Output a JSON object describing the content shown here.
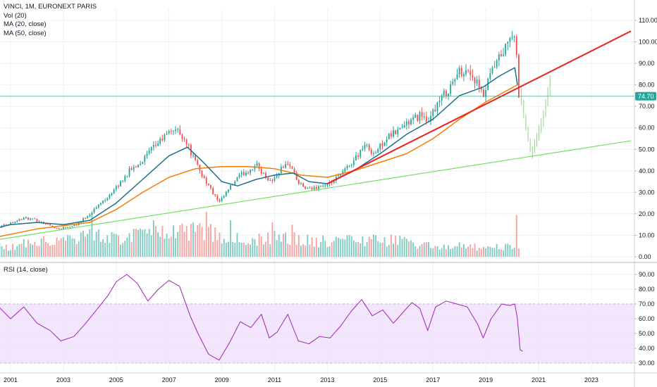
{
  "legend": {
    "symbol": "VINCI, 1M, EURONEXT PARIS",
    "vol": "Vol (20)",
    "ma20": "MA (20, close)",
    "ma50": "MA (50, close)",
    "rsi": "RSI (14, close)"
  },
  "colors": {
    "up": "#26a69a",
    "down": "#ef5350",
    "vol_up": "#7fcbc2",
    "vol_down": "#f3a3a0",
    "ma20": "#1f6f8b",
    "ma50": "#f57c00",
    "trend_red": "#e8231e",
    "trend_green": "#6fe05c",
    "rsi_line": "#9c27b0",
    "rsi_band": "#efdcfb",
    "price_line": "#26a69a",
    "grid": "#eef0f3"
  },
  "chart_data": [
    {
      "type": "candlestick",
      "name": "price",
      "interval": "1M",
      "ylim": [
        0,
        110
      ],
      "y_ticks": [
        "110.00",
        "100.00",
        "90.00",
        "80.00",
        "70.00",
        "60.00",
        "50.00",
        "40.00",
        "30.00",
        "20.00",
        "10.00",
        "0.00"
      ],
      "x_ticks": [
        "2001",
        "2003",
        "2005",
        "2007",
        "2009",
        "2011",
        "2013",
        "2015",
        "2017",
        "2019",
        "2021",
        "2023"
      ],
      "current_price": "74.70",
      "close_path": [
        [
          2000.0,
          11.5
        ],
        [
          2001.5,
          18
        ],
        [
          2002.0,
          17
        ],
        [
          2002.8,
          13
        ],
        [
          2003.5,
          15
        ],
        [
          2004.0,
          20
        ],
        [
          2004.5,
          26
        ],
        [
          2005.0,
          32
        ],
        [
          2005.5,
          40
        ],
        [
          2006.0,
          45
        ],
        [
          2006.5,
          52
        ],
        [
          2007.2,
          60
        ],
        [
          2007.6,
          55
        ],
        [
          2008.0,
          44
        ],
        [
          2008.4,
          35
        ],
        [
          2008.9,
          25
        ],
        [
          2009.3,
          32
        ],
        [
          2009.7,
          38
        ],
        [
          2010.0,
          40
        ],
        [
          2010.3,
          43
        ],
        [
          2010.6,
          38
        ],
        [
          2010.9,
          35
        ],
        [
          2011.3,
          42
        ],
        [
          2011.6,
          43
        ],
        [
          2011.9,
          34
        ],
        [
          2012.3,
          31
        ],
        [
          2012.7,
          33
        ],
        [
          2013.0,
          33
        ],
        [
          2013.5,
          38
        ],
        [
          2014.0,
          45
        ],
        [
          2014.4,
          52
        ],
        [
          2014.8,
          48
        ],
        [
          2015.2,
          55
        ],
        [
          2015.6,
          58
        ],
        [
          2016.0,
          62
        ],
        [
          2016.3,
          64
        ],
        [
          2016.6,
          67
        ],
        [
          2016.8,
          60
        ],
        [
          2017.0,
          68
        ],
        [
          2017.4,
          75
        ],
        [
          2017.7,
          80
        ],
        [
          2018.0,
          86
        ],
        [
          2018.3,
          87
        ],
        [
          2018.6,
          82
        ],
        [
          2018.9,
          74
        ],
        [
          2019.2,
          85
        ],
        [
          2019.5,
          92
        ],
        [
          2019.8,
          98
        ],
        [
          2020.0,
          104
        ],
        [
          2020.15,
          97
        ],
        [
          2020.25,
          73
        ]
      ],
      "wick_path": [
        [
          2020.35,
          75
        ],
        [
          2020.55,
          60
        ],
        [
          2020.75,
          48
        ],
        [
          2020.95,
          55
        ],
        [
          2021.2,
          65
        ],
        [
          2021.5,
          84
        ]
      ],
      "ma20": [
        [
          2000.0,
          12
        ],
        [
          2001,
          15
        ],
        [
          2002,
          16
        ],
        [
          2003,
          15
        ],
        [
          2004,
          17
        ],
        [
          2005,
          25
        ],
        [
          2006,
          36
        ],
        [
          2007,
          47
        ],
        [
          2007.7,
          51
        ],
        [
          2008.3,
          44
        ],
        [
          2009,
          35
        ],
        [
          2009.6,
          33
        ],
        [
          2010.3,
          36
        ],
        [
          2011,
          38
        ],
        [
          2011.7,
          39
        ],
        [
          2012.3,
          35
        ],
        [
          2013,
          34
        ],
        [
          2014,
          40
        ],
        [
          2015,
          48
        ],
        [
          2016,
          57
        ],
        [
          2017,
          64
        ],
        [
          2018,
          75
        ],
        [
          2018.9,
          79
        ],
        [
          2019.5,
          84
        ],
        [
          2020.1,
          88
        ],
        [
          2020.2,
          80
        ]
      ],
      "ma50": [
        [
          2000.0,
          8
        ],
        [
          2002,
          13
        ],
        [
          2004,
          16
        ],
        [
          2005,
          22
        ],
        [
          2006,
          30
        ],
        [
          2007,
          37
        ],
        [
          2008,
          41
        ],
        [
          2009,
          42
        ],
        [
          2010,
          42
        ],
        [
          2011,
          41
        ],
        [
          2012,
          38
        ],
        [
          2013,
          37
        ],
        [
          2014,
          40
        ],
        [
          2015,
          44
        ],
        [
          2016,
          48
        ],
        [
          2017,
          55
        ],
        [
          2018,
          64
        ],
        [
          2019,
          72
        ],
        [
          2020.2,
          80
        ]
      ],
      "trendlines": [
        {
          "color": "trend_red",
          "from": [
            2013.0,
            34
          ],
          "to": [
            2024.5,
            105
          ]
        },
        {
          "color": "trend_green",
          "from": [
            2000.0,
            7
          ],
          "to": [
            2024.5,
            54
          ]
        }
      ]
    },
    {
      "type": "bar",
      "name": "volume",
      "ylim": [
        0,
        110
      ],
      "profile": [
        [
          2000.0,
          5
        ],
        [
          2001,
          4.5
        ],
        [
          2002,
          8
        ],
        [
          2003,
          8.5
        ],
        [
          2004,
          10
        ],
        [
          2005,
          9
        ],
        [
          2006,
          11
        ],
        [
          2007,
          10
        ],
        [
          2008,
          13
        ],
        [
          2009,
          10
        ],
        [
          2010,
          7
        ],
        [
          2011,
          9
        ],
        [
          2012,
          8
        ],
        [
          2013,
          7
        ],
        [
          2014,
          8
        ],
        [
          2015,
          8
        ],
        [
          2016,
          7
        ],
        [
          2017,
          5
        ],
        [
          2018,
          5
        ],
        [
          2019,
          4
        ],
        [
          2020.1,
          5
        ]
      ],
      "spikes": [
        [
          2004.1,
          20
        ],
        [
          2006.4,
          17
        ],
        [
          2008.4,
          21
        ],
        [
          2009.3,
          17
        ],
        [
          2010.9,
          16
        ],
        [
          2011.7,
          15
        ],
        [
          2020.15,
          19.5
        ]
      ]
    },
    {
      "type": "line",
      "name": "RSI (14, close)",
      "ylim": [
        26,
        96
      ],
      "y_ticks": [
        "90.00",
        "80.00",
        "70.00",
        "60.00",
        "50.00",
        "40.00",
        "30.00"
      ],
      "band": [
        30,
        70
      ],
      "values": [
        [
          2000.0,
          65
        ],
        [
          2000.5,
          69
        ],
        [
          2001.0,
          60
        ],
        [
          2001.5,
          68
        ],
        [
          2002.0,
          57
        ],
        [
          2002.5,
          52
        ],
        [
          2002.9,
          45
        ],
        [
          2003.4,
          48
        ],
        [
          2003.8,
          56
        ],
        [
          2004.3,
          67
        ],
        [
          2004.7,
          76
        ],
        [
          2005.0,
          85
        ],
        [
          2005.4,
          90
        ],
        [
          2005.8,
          84
        ],
        [
          2006.2,
          72
        ],
        [
          2006.6,
          80
        ],
        [
          2007.0,
          86
        ],
        [
          2007.4,
          82
        ],
        [
          2007.8,
          62
        ],
        [
          2008.1,
          50
        ],
        [
          2008.5,
          36
        ],
        [
          2008.9,
          32
        ],
        [
          2009.3,
          44
        ],
        [
          2009.7,
          58
        ],
        [
          2010.1,
          54
        ],
        [
          2010.5,
          63
        ],
        [
          2010.8,
          47
        ],
        [
          2011.1,
          51
        ],
        [
          2011.5,
          63
        ],
        [
          2011.9,
          45
        ],
        [
          2012.3,
          43
        ],
        [
          2012.7,
          48
        ],
        [
          2013.1,
          47
        ],
        [
          2013.5,
          55
        ],
        [
          2013.9,
          65
        ],
        [
          2014.3,
          73
        ],
        [
          2014.7,
          62
        ],
        [
          2015.1,
          66
        ],
        [
          2015.5,
          57
        ],
        [
          2015.9,
          65
        ],
        [
          2016.2,
          71
        ],
        [
          2016.5,
          67
        ],
        [
          2016.8,
          52
        ],
        [
          2017.1,
          68
        ],
        [
          2017.5,
          72
        ],
        [
          2017.9,
          70
        ],
        [
          2018.3,
          68
        ],
        [
          2018.7,
          56
        ],
        [
          2018.9,
          47
        ],
        [
          2019.2,
          60
        ],
        [
          2019.6,
          70
        ],
        [
          2019.9,
          69
        ],
        [
          2020.1,
          70
        ],
        [
          2020.2,
          60
        ],
        [
          2020.3,
          39
        ],
        [
          2020.4,
          38
        ]
      ]
    }
  ]
}
